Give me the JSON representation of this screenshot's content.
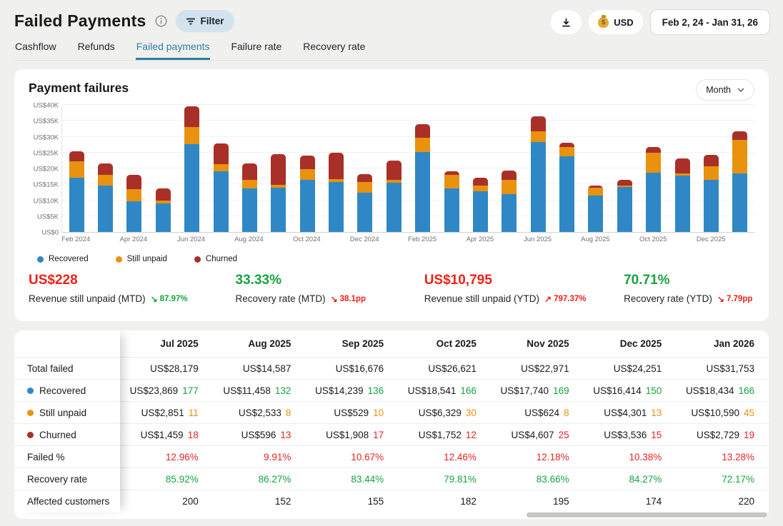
{
  "header": {
    "title": "Failed Payments",
    "filter_label": "Filter",
    "currency_label": "USD",
    "date_range": "Feb 2, 24 - Jan 31, 26"
  },
  "tabs": {
    "active_index": 2,
    "items": [
      {
        "label": "Cashflow"
      },
      {
        "label": "Refunds"
      },
      {
        "label": "Failed payments"
      },
      {
        "label": "Failure rate"
      },
      {
        "label": "Recovery rate"
      }
    ]
  },
  "chart_card": {
    "title": "Payment failures",
    "interval_selector": "Month"
  },
  "chart_data": {
    "type": "bar",
    "stacked": true,
    "title": "Payment failures",
    "ylim": [
      0,
      40000
    ],
    "y_ticks_bottom_up": [
      "US$0",
      "US$5K",
      "US$10K",
      "US$15K",
      "US$20K",
      "US$25K",
      "US$30K",
      "US$35K",
      "US$40K"
    ],
    "grid": true,
    "legend_position": "bottom-left",
    "categories": [
      "Feb 2024",
      "Mar 2024",
      "Apr 2024",
      "May 2024",
      "Jun 2024",
      "Jul 2024",
      "Aug 2024",
      "Sep 2024",
      "Oct 2024",
      "Nov 2024",
      "Dec 2024",
      "Jan 2025",
      "Feb 2025",
      "Mar 2025",
      "Apr 2025",
      "May 2025",
      "Jun 2025",
      "Jul 2025",
      "Aug 2025",
      "Sep 2025",
      "Oct 2025",
      "Nov 2025",
      "Dec 2025",
      "Jan 2026"
    ],
    "x_labeled_every": 2,
    "series": [
      {
        "name": "Recovered",
        "color": "#2f88c5",
        "values": [
          17100,
          14700,
          9700,
          9100,
          27600,
          19200,
          13800,
          13900,
          16500,
          15800,
          12400,
          15500,
          25100,
          13700,
          12800,
          11900,
          28300,
          23869,
          11458,
          14239,
          18541,
          17740,
          16414,
          18434
        ]
      },
      {
        "name": "Still unpaid",
        "color": "#e9920e",
        "values": [
          5100,
          3300,
          3900,
          900,
          5400,
          2300,
          2700,
          900,
          3400,
          1000,
          3300,
          1000,
          4400,
          4300,
          1900,
          4500,
          3400,
          2851,
          2533,
          529,
          6329,
          624,
          4301,
          10590
        ]
      },
      {
        "name": "Churned",
        "color": "#a93028",
        "values": [
          3100,
          3500,
          4400,
          3900,
          6500,
          6600,
          5100,
          9600,
          4200,
          8300,
          2500,
          6000,
          4200,
          1200,
          2500,
          2900,
          4700,
          1459,
          596,
          1908,
          1752,
          4607,
          3536,
          2729
        ]
      }
    ]
  },
  "kpis": [
    {
      "value": "US$228",
      "value_color": "#ee2118",
      "label": "Revenue still unpaid (MTD)",
      "arrow": "↘",
      "delta": "87.97%",
      "delta_color": "#17a33f"
    },
    {
      "value": "33.33%",
      "value_color": "#17a33f",
      "label": "Recovery rate (MTD)",
      "arrow": "↘",
      "delta": "38.1pp",
      "delta_color": "#ee2118"
    },
    {
      "value": "US$10,795",
      "value_color": "#ee2118",
      "label": "Revenue still unpaid (YTD)",
      "arrow": "↗",
      "delta": "797.37%",
      "delta_color": "#ee2118"
    },
    {
      "value": "70.71%",
      "value_color": "#17a33f",
      "label": "Recovery rate (YTD)",
      "arrow": "↘",
      "delta": "7.79pp",
      "delta_color": "#ee2118"
    }
  ],
  "table": {
    "columns": [
      "Jul 2025",
      "Aug 2025",
      "Sep 2025",
      "Oct 2025",
      "Nov 2025",
      "Dec 2025",
      "Jan 2026"
    ],
    "hidden_column_header_partial": "5",
    "rows": [
      {
        "label": "Total failed",
        "type": "plain",
        "partial": "3",
        "partial_color": "#191919",
        "values": [
          "US$28,179",
          "US$14,587",
          "US$16,676",
          "US$26,621",
          "US$22,971",
          "US$24,251",
          "US$31,753"
        ]
      },
      {
        "label": "Recovered",
        "type": "split",
        "dot": "#2f88c5",
        "count_color": "#17a33f",
        "partial": "9",
        "partial_color": "#17a33f",
        "values": [
          [
            "US$23,869",
            "177"
          ],
          [
            "US$11,458",
            "132"
          ],
          [
            "US$14,239",
            "136"
          ],
          [
            "US$18,541",
            "166"
          ],
          [
            "US$17,740",
            "169"
          ],
          [
            "US$16,414",
            "150"
          ],
          [
            "US$18,434",
            "166"
          ]
        ]
      },
      {
        "label": "Still unpaid",
        "type": "split",
        "dot": "#e9920e",
        "count_color": "#e9920e",
        "partial": "3",
        "partial_color": "#e9920e",
        "values": [
          [
            "US$2,851",
            "11"
          ],
          [
            "US$2,533",
            "8"
          ],
          [
            "US$529",
            "10"
          ],
          [
            "US$6,329",
            "30"
          ],
          [
            "US$624",
            "8"
          ],
          [
            "US$4,301",
            "13"
          ],
          [
            "US$10,590",
            "45"
          ]
        ]
      },
      {
        "label": "Churned",
        "type": "split",
        "dot": "#a93028",
        "count_color": "#e42525",
        "partial": "6",
        "partial_color": "#e42525",
        "values": [
          [
            "US$1,459",
            "18"
          ],
          [
            "US$596",
            "13"
          ],
          [
            "US$1,908",
            "17"
          ],
          [
            "US$1,752",
            "12"
          ],
          [
            "US$4,607",
            "25"
          ],
          [
            "US$3,536",
            "15"
          ],
          [
            "US$2,729",
            "19"
          ]
        ]
      },
      {
        "label": "Failed %",
        "type": "plain",
        "value_color": "#e42525",
        "partial": "%",
        "partial_color": "#e42525",
        "values": [
          "12.96%",
          "9.91%",
          "10.67%",
          "12.46%",
          "12.18%",
          "10.38%",
          "13.28%"
        ]
      },
      {
        "label": "Recovery rate",
        "type": "plain",
        "value_color": "#17a33f",
        "partial": "%",
        "partial_color": "#17a33f",
        "values": [
          "85.92%",
          "86.27%",
          "83.44%",
          "79.81%",
          "83.66%",
          "84.27%",
          "72.17%"
        ]
      },
      {
        "label": "Affected customers",
        "type": "plain",
        "partial": "0",
        "partial_color": "#191919",
        "values": [
          "200",
          "152",
          "155",
          "182",
          "195",
          "174",
          "220"
        ]
      }
    ]
  }
}
